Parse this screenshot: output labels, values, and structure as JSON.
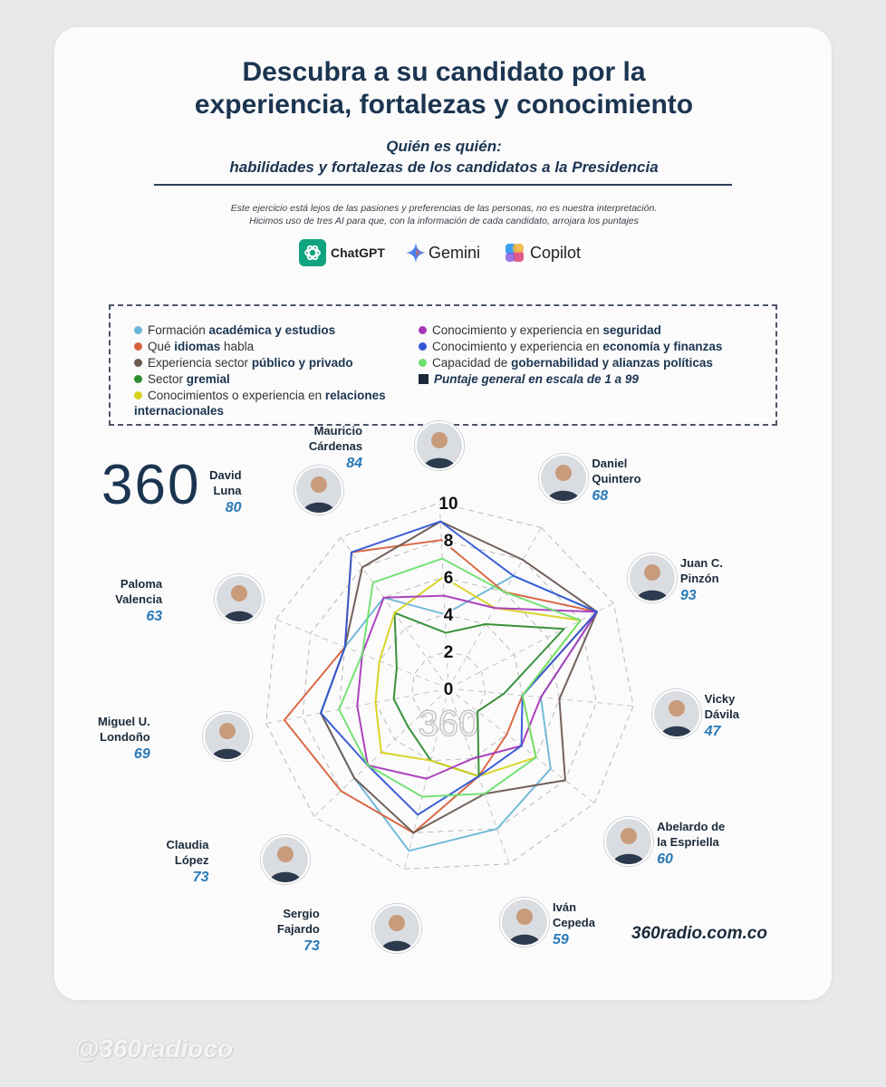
{
  "header": {
    "title_line1": "Descubra a su candidato por la",
    "title_line2": "experiencia, fortalezas y conocimiento",
    "subtitle_line1": "Quién es quién:",
    "subtitle_line2": "habilidades y fortalezas de los candidatos a la Presidencia",
    "disclaimer_line1": "Este ejercicio está lejos de las pasiones y preferencias de las personas, no es nuestra interpretación.",
    "disclaimer_line2": "Hicimos uso de tres AI para que, con la información de cada candidato, arrojara los puntajes"
  },
  "ai_tools": [
    {
      "label": "ChatGPT",
      "icon": "chatgpt-icon",
      "color": "#10a37f"
    },
    {
      "label": "Gemini",
      "icon": "gemini-icon",
      "color": "#4a7ff0"
    },
    {
      "label": "Copilot",
      "icon": "copilot-icon",
      "color": "#e05a8a"
    }
  ],
  "legend": [
    {
      "pre": "Formación ",
      "bold": "académica y estudios",
      "post": "",
      "color": "#6ab7d6",
      "marker": "dot"
    },
    {
      "pre": "Qué ",
      "bold": "idiomas",
      "post": " habla",
      "color": "#d9613d",
      "marker": "dot"
    },
    {
      "pre": "Experiencia sector ",
      "bold": "público y privado",
      "post": "",
      "color": "#6b5a52",
      "marker": "dot"
    },
    {
      "pre": "Sector ",
      "bold": "gremial",
      "post": "",
      "color": "#2e8b2e",
      "marker": "dot"
    },
    {
      "pre": "Conocimientos o experiencia en ",
      "bold": "relaciones",
      "post": "",
      "bold2": "internacionales",
      "color": "#d8d21e",
      "marker": "dot"
    },
    {
      "pre": "Conocimiento y experiencia en ",
      "bold": "seguridad",
      "post": "",
      "color": "#a63ab8",
      "marker": "dot"
    },
    {
      "pre": "Conocimiento y experiencia en ",
      "bold": "economía y finanzas",
      "post": "",
      "color": "#3256d6",
      "marker": "dot"
    },
    {
      "pre": "Capacidad de ",
      "bold": "gobernabilidad y alianzas políticas",
      "post": "",
      "color": "#6ee06e",
      "marker": "dot"
    },
    {
      "pre": "",
      "bold": "Puntaje general en escala de 1 a 99",
      "post": "",
      "color": "#1b2a3a",
      "marker": "square",
      "italic": true
    }
  ],
  "brand": "360",
  "watermark": "360",
  "website": "360radio.com.co",
  "handle": "@360radioco",
  "chart_data": {
    "type": "radar",
    "title": "",
    "radial_ticks": [
      "0",
      "2",
      "4",
      "6",
      "8",
      "10"
    ],
    "rlim": [
      0,
      10
    ],
    "categories": [
      "Daniel Quintero",
      "Juan C. Pinzón",
      "Vicky Dávila",
      "Abelardo de la Espriella",
      "Iván Cepeda",
      "Sergio Fajardo",
      "Claudia López",
      "Miguel U. Londoño",
      "Paloma Valencia",
      "David Luna",
      "Mauricio Cárdenas"
    ],
    "overall_scores": [
      68,
      93,
      47,
      60,
      59,
      73,
      73,
      69,
      63,
      80,
      84
    ],
    "series": [
      {
        "name": "Formación académica y estudios",
        "color": "#6ab7d6",
        "values": [
          7,
          9,
          5,
          7,
          8,
          9,
          7,
          7,
          6,
          6,
          4
        ]
      },
      {
        "name": "Qué idiomas habla",
        "color": "#d9613d",
        "values": [
          6,
          9,
          4,
          4,
          5,
          8,
          8,
          9,
          6,
          9,
          8
        ]
      },
      {
        "name": "Experiencia sector público y privado",
        "color": "#6b5a52",
        "values": [
          8,
          9,
          6,
          8,
          6,
          8,
          7,
          7,
          6,
          8,
          9
        ]
      },
      {
        "name": "Sector gremial",
        "color": "#2e8b2e",
        "values": [
          4,
          7,
          3,
          2,
          5,
          4,
          3,
          3,
          3,
          5,
          3
        ]
      },
      {
        "name": "Conocimientos o experiencia en relaciones internacionales",
        "color": "#d8d21e",
        "values": [
          5,
          8,
          4,
          6,
          5,
          4,
          5,
          4,
          4,
          5,
          6
        ]
      },
      {
        "name": "Conocimiento y experiencia en seguridad",
        "color": "#a63ab8",
        "values": [
          5,
          9,
          5,
          5,
          4,
          5,
          6,
          5,
          5,
          6,
          5
        ]
      },
      {
        "name": "Conocimiento y experiencia en economía y finanzas",
        "color": "#3256d6",
        "values": [
          7,
          9,
          4,
          5,
          5,
          7,
          6,
          7,
          6,
          9,
          9
        ]
      },
      {
        "name": "Capacidad de gobernabilidad y alianzas políticas",
        "color": "#6ee06e",
        "values": [
          6,
          8,
          4,
          6,
          6,
          6,
          6,
          6,
          5,
          7,
          7
        ]
      }
    ]
  },
  "candidates": [
    {
      "name1": "Daniel",
      "name2": "Quintero",
      "score": "68"
    },
    {
      "name1": "Juan C.",
      "name2": "Pinzón",
      "score": "93"
    },
    {
      "name1": "Vicky",
      "name2": "Dávila",
      "score": "47"
    },
    {
      "name1": "Abelardo de",
      "name2": "la Espriella",
      "score": "60"
    },
    {
      "name1": "Iván",
      "name2": "Cepeda",
      "score": "59"
    },
    {
      "name1": "Sergio",
      "name2": "Fajardo",
      "score": "73"
    },
    {
      "name1": "Claudia",
      "name2": "López",
      "score": "73"
    },
    {
      "name1": "Miguel U.",
      "name2": "Londoño",
      "score": "69"
    },
    {
      "name1": "Paloma",
      "name2": "Valencia",
      "score": "63"
    },
    {
      "name1": "David",
      "name2": "Luna",
      "score": "80"
    },
    {
      "name1": "Mauricio",
      "name2": "Cárdenas",
      "score": "84"
    }
  ]
}
